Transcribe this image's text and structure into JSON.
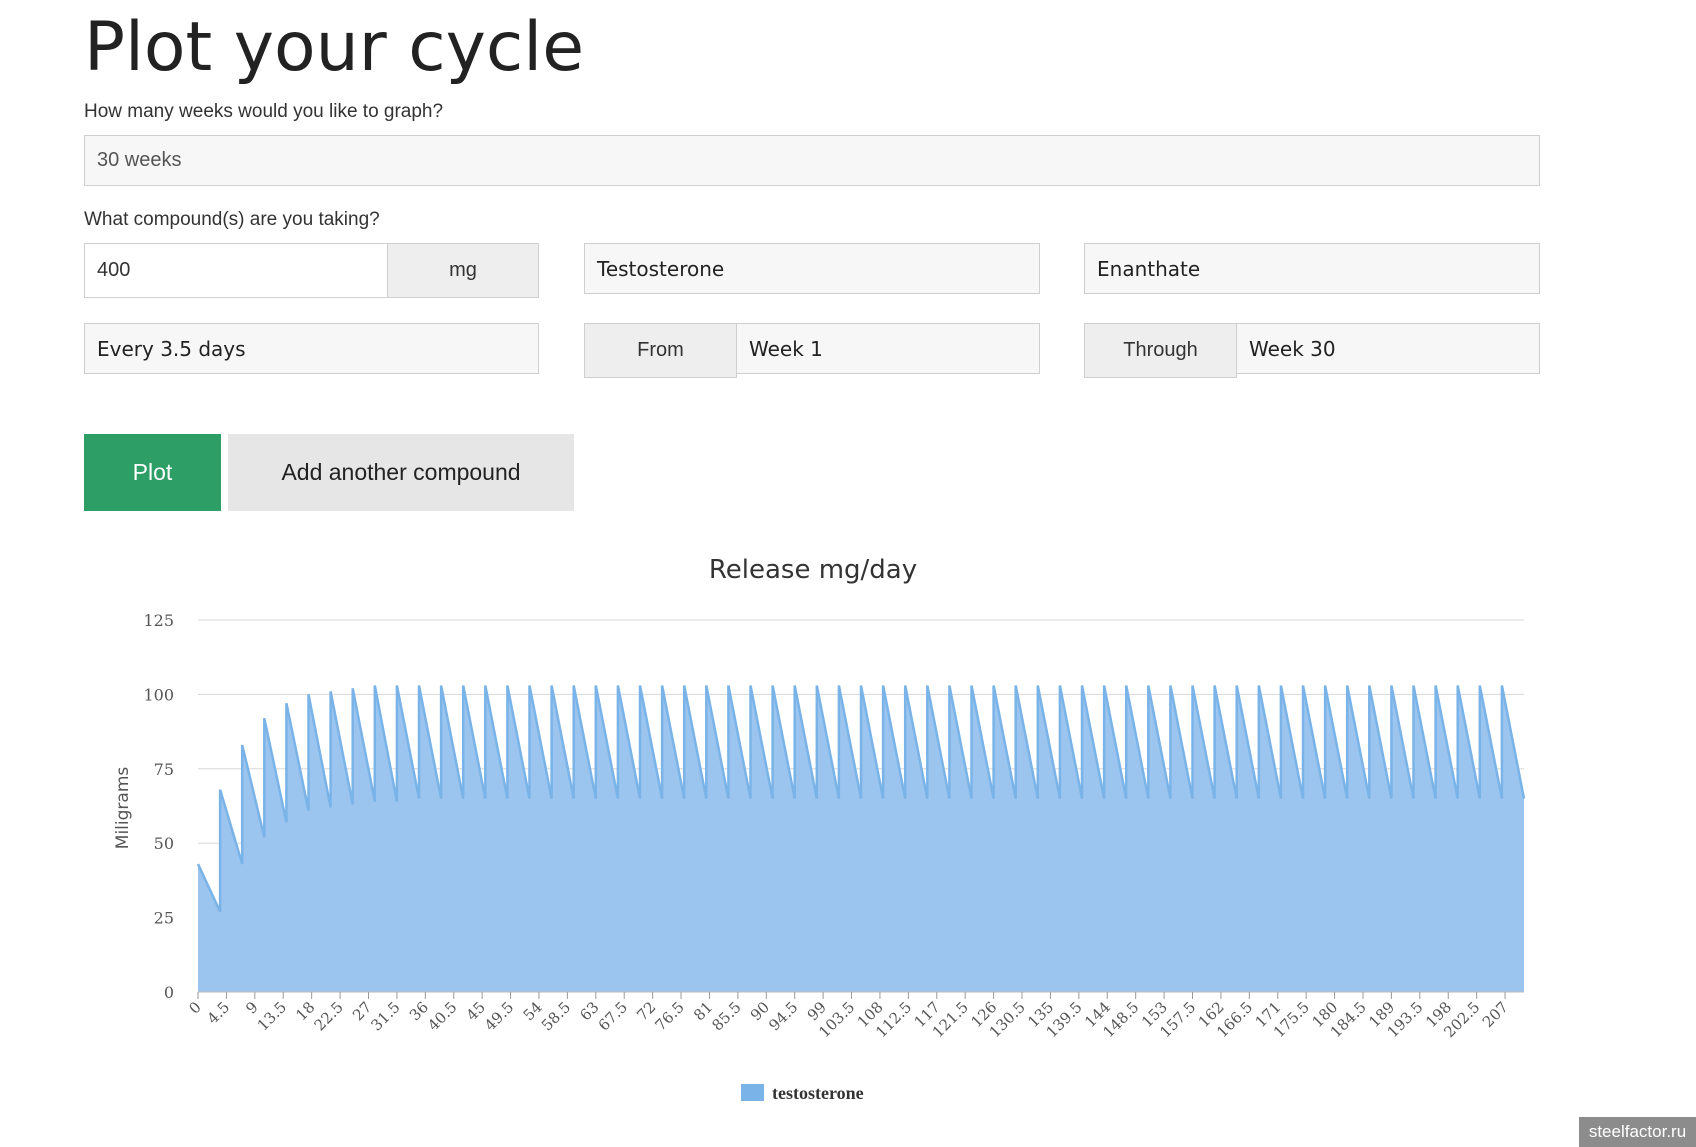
{
  "page": {
    "title": "Plot your cycle"
  },
  "form": {
    "weeks_question": "How many weeks would you like to graph?",
    "weeks_value": "30 weeks",
    "compound_question": "What compound(s) are you taking?",
    "dose_value": "400",
    "dose_unit": "mg",
    "compound_name": "Testosterone",
    "ester": "Enanthate",
    "frequency": "Every 3.5 days",
    "from_label": "From",
    "from_value": "Week 1",
    "through_label": "Through",
    "through_value": "Week 30"
  },
  "buttons": {
    "plot": "Plot",
    "add_compound": "Add another compound"
  },
  "colors": {
    "accent": "#2e9e67",
    "series_fill": "#9bc5ef",
    "series_line": "#7ab3e8"
  },
  "chart_data": {
    "type": "area",
    "title": "Release mg/day",
    "xlabel": "",
    "ylabel": "Miligrams",
    "ylim": [
      0,
      125
    ],
    "yticks": [
      0,
      25,
      50,
      75,
      100,
      125
    ],
    "xlim": [
      0,
      210
    ],
    "xticks": [
      "0",
      "4.5",
      "9",
      "13.5",
      "18",
      "22.5",
      "27",
      "31.5",
      "36",
      "40.5",
      "45",
      "49.5",
      "54",
      "58.5",
      "63",
      "67.5",
      "72",
      "76.5",
      "81",
      "85.5",
      "90",
      "94.5",
      "99",
      "103.5",
      "108",
      "112.5",
      "117",
      "121.5",
      "126",
      "130.5",
      "135",
      "139.5",
      "144",
      "148.5",
      "153",
      "157.5",
      "162",
      "166.5",
      "171",
      "175.5",
      "180",
      "184.5",
      "189",
      "193.5",
      "198",
      "202.5",
      "207"
    ],
    "grid": true,
    "legend": "bottom-center",
    "series": [
      {
        "name": "testosterone",
        "x": [
          0,
          3.5,
          3.5,
          7,
          7,
          10.5,
          10.5,
          14,
          14,
          17.5,
          17.5,
          21,
          21,
          24.5,
          24.5,
          28,
          28,
          31.5,
          31.5,
          35,
          35,
          38.5,
          38.5,
          42,
          42,
          45.5,
          45.5,
          49,
          49,
          52.5,
          52.5,
          56,
          56,
          59.5,
          59.5,
          63,
          63,
          66.5,
          66.5,
          70,
          70,
          73.5,
          73.5,
          77,
          77,
          80.5,
          80.5,
          84,
          84,
          87.5,
          87.5,
          91,
          91,
          94.5,
          94.5,
          98,
          98,
          101.5,
          101.5,
          105,
          105,
          108.5,
          108.5,
          112,
          112,
          115.5,
          115.5,
          119,
          119,
          122.5,
          122.5,
          126,
          126,
          129.5,
          129.5,
          133,
          133,
          136.5,
          136.5,
          140,
          140,
          143.5,
          143.5,
          147,
          147,
          150.5,
          150.5,
          154,
          154,
          157.5,
          157.5,
          161,
          161,
          164.5,
          164.5,
          168,
          168,
          171.5,
          171.5,
          175,
          175,
          178.5,
          178.5,
          182,
          182,
          185.5,
          185.5,
          189,
          189,
          192.5,
          192.5,
          196,
          196,
          199.5,
          199.5,
          203,
          203,
          206.5,
          206.5,
          210
        ],
        "values": [
          43,
          27,
          68,
          43,
          83,
          52,
          92,
          57,
          97,
          61,
          100,
          62,
          101,
          63,
          102,
          64,
          103,
          64,
          103,
          65,
          103,
          65,
          103,
          65,
          103,
          65,
          103,
          65,
          103,
          65,
          103,
          65,
          103,
          65,
          103,
          65,
          103,
          65,
          103,
          65,
          103,
          65,
          103,
          65,
          103,
          65,
          103,
          65,
          103,
          65,
          103,
          65,
          103,
          65,
          103,
          65,
          103,
          65,
          103,
          65,
          103,
          65,
          103,
          65,
          103,
          65,
          103,
          65,
          103,
          65,
          103,
          65,
          103,
          65,
          103,
          65,
          103,
          65,
          103,
          65,
          103,
          65,
          103,
          65,
          103,
          65,
          103,
          65,
          103,
          65,
          103,
          65,
          103,
          65,
          103,
          65,
          103,
          65,
          103,
          65,
          103,
          65,
          103,
          65,
          103,
          65,
          103,
          65,
          103,
          65,
          103,
          65,
          103,
          65,
          103,
          65,
          103,
          65,
          103,
          65
        ]
      }
    ]
  },
  "watermark": "steelfactor.ru"
}
